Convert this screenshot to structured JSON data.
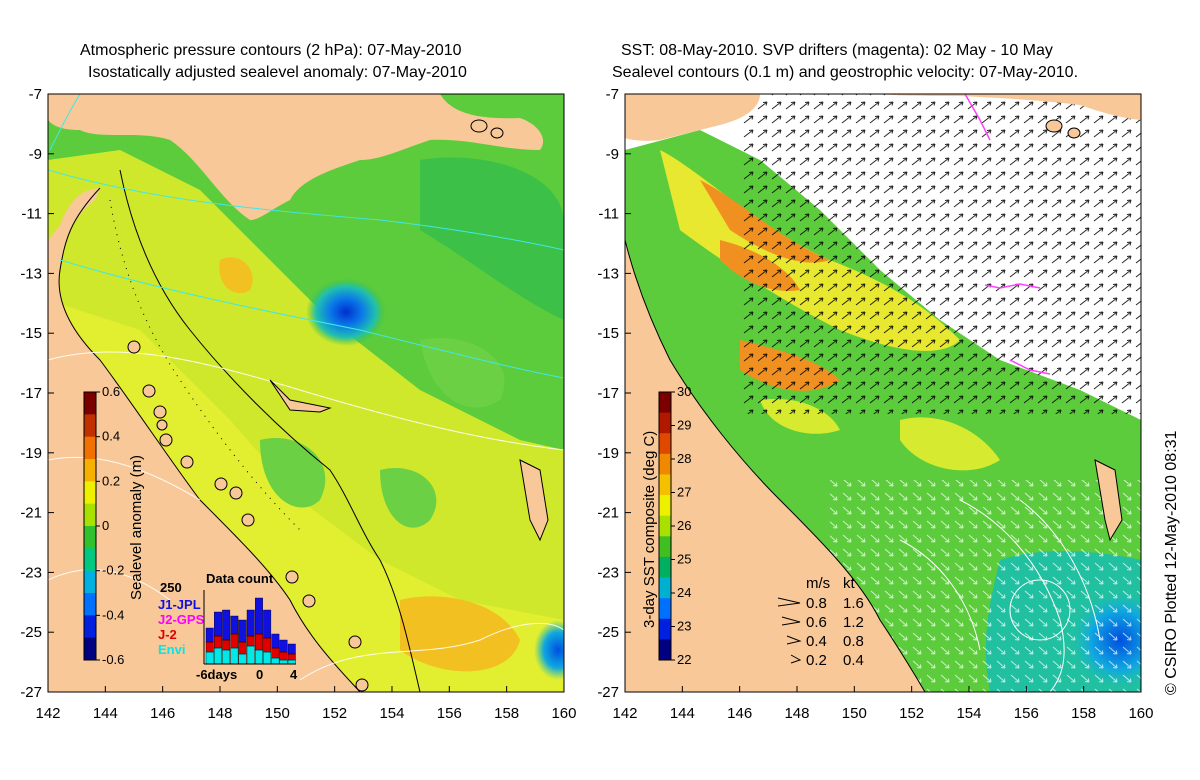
{
  "left_panel": {
    "title_line1": "Atmospheric pressure contours (2 hPa): 07-May-2010",
    "title_line2": "Isostatically adjusted sealevel anomaly: 07-May-2010",
    "colorbar": {
      "label": "Sealevel anomaly (m)",
      "ticks": [
        "0.6",
        "0.4",
        "0.2",
        "0",
        "-0.2",
        "-0.4",
        "-0.6"
      ],
      "colors": [
        "#7a0000",
        "#c03000",
        "#f07000",
        "#f5b000",
        "#eef000",
        "#a8e000",
        "#30c030",
        "#00c880",
        "#00b0e0",
        "#0070ff",
        "#0020e0",
        "#000080"
      ]
    },
    "data_count": {
      "title": "Data count",
      "ymax_label": "250",
      "legend": [
        {
          "label": "J1-JPL",
          "color": "#1010e0"
        },
        {
          "label": "J2-GPS",
          "color": "#ff00ff"
        },
        {
          "label": "J-2",
          "color": "#e00000"
        },
        {
          "label": "Envi",
          "color": "#00e8e8"
        }
      ],
      "x_labels": [
        "-6days",
        "0",
        "4"
      ]
    }
  },
  "right_panel": {
    "title_line1": "SST: 08-May-2010. SVP drifters (magenta): 02 May - 10 May",
    "title_line2": "Sealevel contours (0.1 m) and geostrophic velocity: 07-May-2010.",
    "colorbar": {
      "label": "3-day SST composite (deg C)",
      "ticks": [
        "30",
        "29",
        "28",
        "27",
        "26",
        "25",
        "24",
        "23",
        "22"
      ],
      "colors": [
        "#7a0000",
        "#b01800",
        "#e04800",
        "#f08800",
        "#f5c000",
        "#eef000",
        "#a8e000",
        "#40c020",
        "#00b060",
        "#00b0d0",
        "#0070ff",
        "#0020e0",
        "#000080"
      ]
    },
    "velocity_legend": {
      "header_ms": "m/s",
      "header_kt": "kt",
      "rows": [
        {
          "ms": "0.8",
          "kt": "1.6"
        },
        {
          "ms": "0.6",
          "kt": "1.2"
        },
        {
          "ms": "0.4",
          "kt": "0.8"
        },
        {
          "ms": "0.2",
          "kt": "0.4"
        }
      ]
    }
  },
  "axes": {
    "lat_labels": [
      "-7",
      "-9",
      "-11",
      "-13",
      "-15",
      "-17",
      "-19",
      "-21",
      "-23",
      "-25",
      "-27"
    ],
    "lon_labels": [
      "142",
      "144",
      "146",
      "148",
      "150",
      "152",
      "154",
      "156",
      "158",
      "160"
    ]
  },
  "stamp": "© CSIRO Plotted 12-May-2010 08:31",
  "colors": {
    "land": "#f8c898",
    "ocean_green": "#5ccc3c",
    "ocean_yellow": "#d8ec28",
    "low_anomaly": "#0a6ad8"
  }
}
